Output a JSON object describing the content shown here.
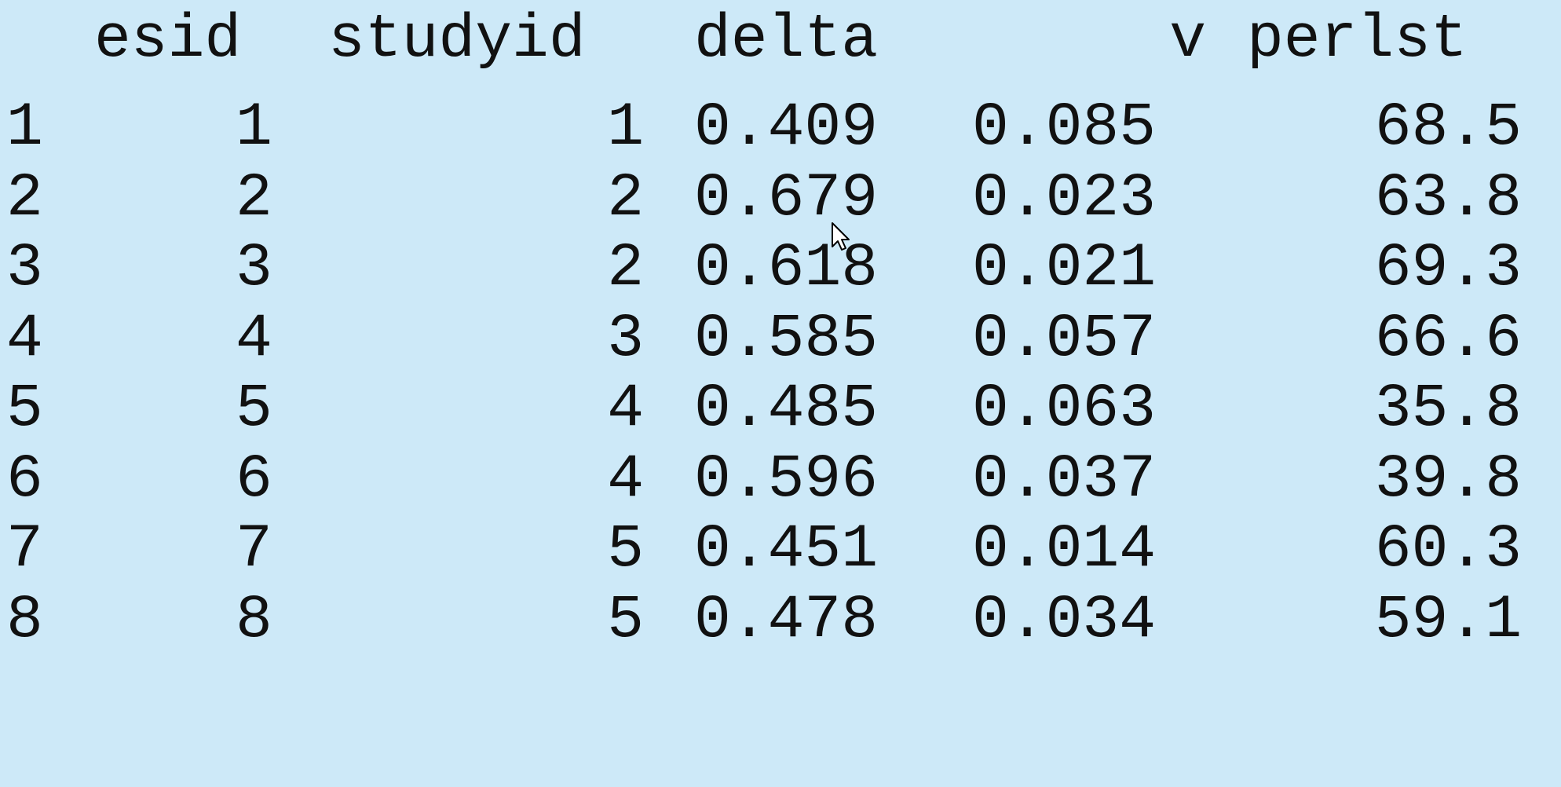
{
  "table": {
    "columns": [
      "esid",
      "studyid",
      "delta",
      "v",
      "perlst"
    ],
    "rows": [
      {
        "rowname": "1",
        "esid": "1",
        "studyid": "1",
        "delta": "0.409",
        "v": "0.085",
        "perlst": "68.5"
      },
      {
        "rowname": "2",
        "esid": "2",
        "studyid": "2",
        "delta": "0.679",
        "v": "0.023",
        "perlst": "63.8"
      },
      {
        "rowname": "3",
        "esid": "3",
        "studyid": "2",
        "delta": "0.618",
        "v": "0.021",
        "perlst": "69.3"
      },
      {
        "rowname": "4",
        "esid": "4",
        "studyid": "3",
        "delta": "0.585",
        "v": "0.057",
        "perlst": "66.6"
      },
      {
        "rowname": "5",
        "esid": "5",
        "studyid": "4",
        "delta": "0.485",
        "v": "0.063",
        "perlst": "35.8"
      },
      {
        "rowname": "6",
        "esid": "6",
        "studyid": "4",
        "delta": "0.596",
        "v": "0.037",
        "perlst": "39.8"
      },
      {
        "rowname": "7",
        "esid": "7",
        "studyid": "5",
        "delta": "0.451",
        "v": "0.014",
        "perlst": "60.3"
      },
      {
        "rowname": "8",
        "esid": "8",
        "studyid": "5",
        "delta": "0.478",
        "v": "0.034",
        "perlst": "59.1"
      }
    ]
  },
  "colors": {
    "background": "#cde9f8",
    "text": "#111111"
  },
  "cursor_icon": "mouse-pointer-icon"
}
